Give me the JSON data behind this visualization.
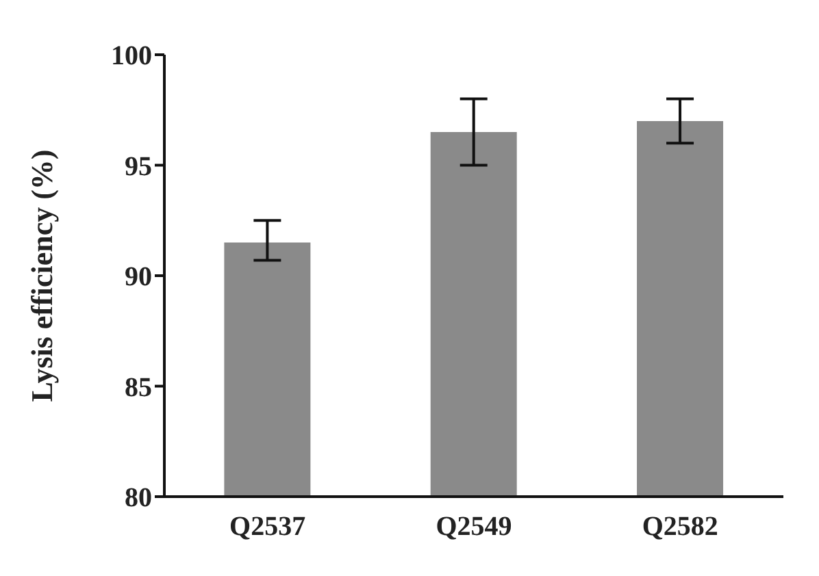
{
  "chart_data": {
    "type": "bar",
    "ylabel": "Lysis efficiency (%)",
    "categories": [
      "Q2537",
      "Q2549",
      "Q2582"
    ],
    "values": [
      91.5,
      96.5,
      97.0
    ],
    "errors": [
      [
        90.7,
        92.5
      ],
      [
        95.0,
        98.0
      ],
      [
        96.0,
        98.0
      ]
    ],
    "color": "#8a8a8a",
    "ylim": [
      80,
      100
    ],
    "yticks": [
      80,
      85,
      90,
      95,
      100
    ],
    "grid": false,
    "legend": false
  }
}
